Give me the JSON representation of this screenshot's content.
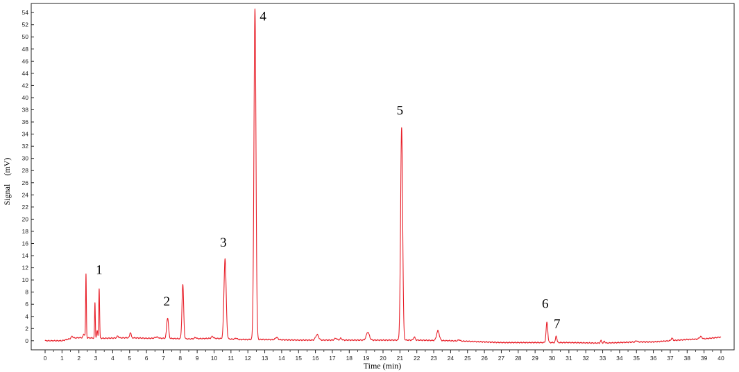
{
  "chart_data": {
    "type": "line",
    "title": "",
    "xlabel": "Time (min)",
    "ylabel": "Signal　(mV)",
    "xlim": [
      0,
      40
    ],
    "ylim": [
      -1.5,
      55.5
    ],
    "x_ticks": [
      0,
      1,
      2,
      3,
      4,
      5,
      6,
      7,
      8,
      9,
      10,
      11,
      12,
      13,
      14,
      15,
      16,
      17,
      18,
      19,
      20,
      21,
      22,
      23,
      24,
      25,
      26,
      27,
      28,
      29,
      30,
      31,
      32,
      33,
      34,
      35,
      36,
      37,
      38,
      39,
      40
    ],
    "y_ticks": [
      0,
      2,
      4,
      6,
      8,
      10,
      12,
      14,
      16,
      18,
      20,
      22,
      24,
      26,
      28,
      30,
      32,
      34,
      36,
      38,
      40,
      42,
      44,
      46,
      48,
      50,
      52,
      54
    ],
    "line_color": "#e8202a",
    "grid": false,
    "baseline": [
      [
        0,
        0.0
      ],
      [
        1,
        0.0
      ],
      [
        1.6,
        0.4
      ],
      [
        2.0,
        0.5
      ],
      [
        3.5,
        0.4
      ],
      [
        5.0,
        0.5
      ],
      [
        6.0,
        0.4
      ],
      [
        7.0,
        0.4
      ],
      [
        8.5,
        0.3
      ],
      [
        10.0,
        0.4
      ],
      [
        11.5,
        0.2
      ],
      [
        13.0,
        0.2
      ],
      [
        15.0,
        0.1
      ],
      [
        18.0,
        0.1
      ],
      [
        20.0,
        0.1
      ],
      [
        22.0,
        0.1
      ],
      [
        24.0,
        0.0
      ],
      [
        25.0,
        -0.1
      ],
      [
        26.0,
        -0.2
      ],
      [
        27.0,
        -0.3
      ],
      [
        28.0,
        -0.3
      ],
      [
        29.0,
        -0.3
      ],
      [
        31.0,
        -0.3
      ],
      [
        33.0,
        -0.4
      ],
      [
        34.0,
        -0.3
      ],
      [
        35.0,
        -0.2
      ],
      [
        36.0,
        -0.2
      ],
      [
        37.0,
        0.0
      ],
      [
        38.0,
        0.2
      ],
      [
        39.0,
        0.3
      ],
      [
        40.0,
        0.6
      ]
    ],
    "peaks": [
      {
        "t": 1.6,
        "h": 0.3,
        "w": 0.06
      },
      {
        "t": 2.3,
        "h": 0.6,
        "w": 0.05
      },
      {
        "t": 2.42,
        "h": 10.4,
        "w": 0.022
      },
      {
        "t": 2.95,
        "h": 5.8,
        "w": 0.022
      },
      {
        "t": 3.08,
        "h": 1.2,
        "w": 0.03
      },
      {
        "t": 3.2,
        "h": 8.2,
        "w": 0.025
      },
      {
        "t": 4.3,
        "h": 0.3,
        "w": 0.05
      },
      {
        "t": 5.05,
        "h": 0.9,
        "w": 0.04
      },
      {
        "t": 6.6,
        "h": 0.2,
        "w": 0.1
      },
      {
        "t": 7.25,
        "h": 3.4,
        "w": 0.055
      },
      {
        "t": 8.15,
        "h": 8.9,
        "w": 0.05
      },
      {
        "t": 8.9,
        "h": 0.2,
        "w": 0.06
      },
      {
        "t": 9.9,
        "h": 0.3,
        "w": 0.06
      },
      {
        "t": 10.65,
        "h": 13.2,
        "w": 0.065
      },
      {
        "t": 11.3,
        "h": 0.2,
        "w": 0.06
      },
      {
        "t": 12.42,
        "h": 54.3,
        "w": 0.06
      },
      {
        "t": 13.7,
        "h": 0.4,
        "w": 0.07
      },
      {
        "t": 16.1,
        "h": 0.9,
        "w": 0.09
      },
      {
        "t": 17.2,
        "h": 0.3,
        "w": 0.07
      },
      {
        "t": 17.5,
        "h": 0.3,
        "w": 0.06
      },
      {
        "t": 19.1,
        "h": 1.3,
        "w": 0.09
      },
      {
        "t": 21.1,
        "h": 35.0,
        "w": 0.06
      },
      {
        "t": 21.85,
        "h": 0.5,
        "w": 0.05
      },
      {
        "t": 23.25,
        "h": 1.6,
        "w": 0.08
      },
      {
        "t": 24.5,
        "h": 0.2,
        "w": 0.06
      },
      {
        "t": 29.7,
        "h": 3.3,
        "w": 0.05
      },
      {
        "t": 30.25,
        "h": 1.1,
        "w": 0.04
      },
      {
        "t": 32.9,
        "h": 0.4,
        "w": 0.04
      },
      {
        "t": 33.1,
        "h": 0.3,
        "w": 0.04
      },
      {
        "t": 35.0,
        "h": 0.2,
        "w": 0.05
      },
      {
        "t": 37.1,
        "h": 0.4,
        "w": 0.05
      },
      {
        "t": 38.8,
        "h": 0.4,
        "w": 0.08
      }
    ],
    "annotations": [
      {
        "text": "1",
        "x": 3.2,
        "y": 11.0
      },
      {
        "text": "2",
        "x": 7.2,
        "y": 5.8
      },
      {
        "text": "3",
        "x": 10.55,
        "y": 15.5
      },
      {
        "text": "4",
        "x": 12.9,
        "y": 52.7
      },
      {
        "text": "5",
        "x": 21.0,
        "y": 37.2
      },
      {
        "text": "6",
        "x": 29.6,
        "y": 5.4
      },
      {
        "text": "7",
        "x": 30.3,
        "y": 2.1
      }
    ]
  }
}
